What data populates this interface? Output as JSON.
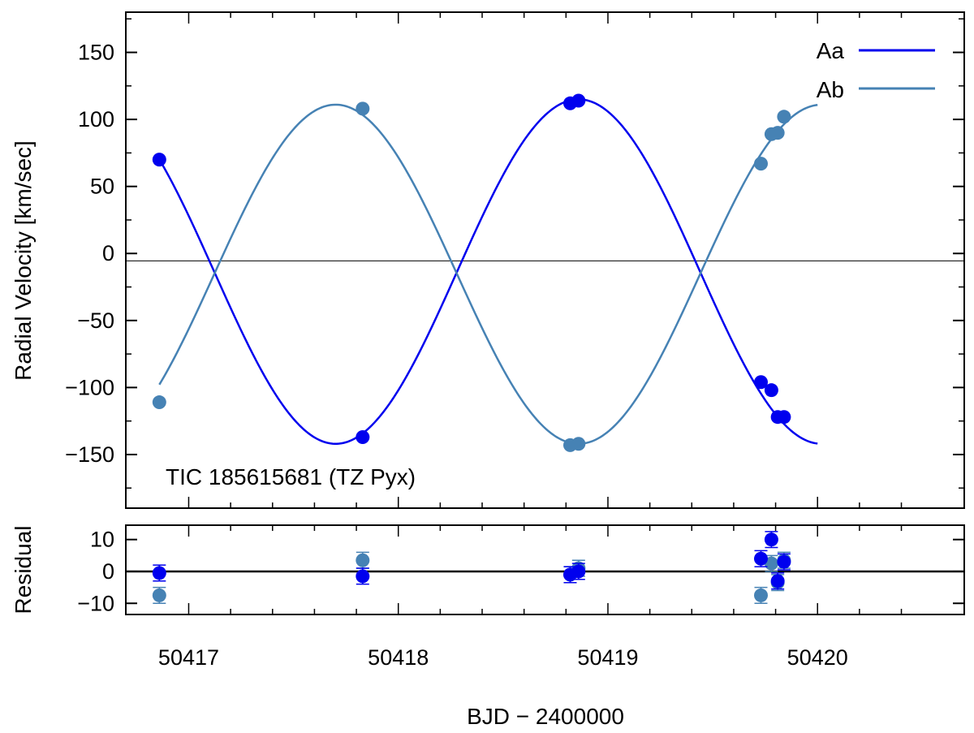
{
  "colors": {
    "Aa": "#0000ee",
    "Ab": "#4682b4",
    "axis": "#000000",
    "background": "#ffffff"
  },
  "chart_data": [
    {
      "panel": "top",
      "type": "scatter",
      "xlabel": "",
      "ylabel": "Radial Velocity [km/sec]",
      "annotation": "TIC 185615681 (TZ Pyx)",
      "xlim": [
        50416.7,
        50420.7
      ],
      "ylim": [
        -190,
        180
      ],
      "yticks": [
        150,
        100,
        50,
        0,
        -50,
        -100,
        -150
      ],
      "ytick_labels": [
        "150",
        "100",
        "50",
        "0",
        "−50",
        "−100",
        "−150"
      ],
      "systemic_velocity": -5.5,
      "legend": {
        "placement": "top-right",
        "entries": [
          "Aa",
          "Ab"
        ]
      },
      "series": [
        {
          "name": "Aa",
          "color": "#0000ee",
          "points": [
            [
              50416.86,
              70
            ],
            [
              50417.83,
              -137
            ],
            [
              50418.82,
              112
            ],
            [
              50418.86,
              114
            ],
            [
              50419.73,
              -96
            ],
            [
              50419.78,
              -102
            ],
            [
              50419.81,
              -122
            ],
            [
              50419.84,
              -122
            ]
          ],
          "model": {
            "K": 128.5,
            "gamma": -13.5,
            "phase_zero": 50418.86,
            "period": 2.318,
            "x_start": 50416.86,
            "x_end": 50420.0
          }
        },
        {
          "name": "Ab",
          "color": "#4682b4",
          "points": [
            [
              50416.86,
              -111
            ],
            [
              50417.83,
              108
            ],
            [
              50418.82,
              -143
            ],
            [
              50418.86,
              -142
            ],
            [
              50419.73,
              67
            ],
            [
              50419.78,
              89
            ],
            [
              50419.81,
              90
            ],
            [
              50419.84,
              102
            ]
          ],
          "model": {
            "K": 126.5,
            "gamma": -15.5,
            "phase_zero": 50418.86,
            "period": 2.318,
            "x_start": 50416.86,
            "x_end": 50420.0
          }
        }
      ]
    },
    {
      "panel": "bottom",
      "type": "scatter",
      "xlabel": "BJD − 2400000",
      "ylabel": "Residual",
      "xlim": [
        50416.7,
        50420.7
      ],
      "ylim": [
        -13.5,
        14.5
      ],
      "yticks": [
        10,
        0,
        -10
      ],
      "ytick_labels": [
        "10",
        "0",
        "−10"
      ],
      "xticks": [
        50417,
        50418,
        50419,
        50420
      ],
      "xtick_labels": [
        "50417",
        "50418",
        "50419",
        "50420"
      ],
      "series": [
        {
          "name": "Aa",
          "color": "#0000ee",
          "points": [
            [
              50416.86,
              -0.5
            ],
            [
              50417.83,
              -1.5
            ],
            [
              50418.82,
              -1.0
            ],
            [
              50418.86,
              0.0
            ],
            [
              50419.73,
              4.0
            ],
            [
              50419.78,
              10.0
            ],
            [
              50419.81,
              -3.0
            ],
            [
              50419.84,
              3.0
            ]
          ],
          "err": 2.5
        },
        {
          "name": "Ab",
          "color": "#4682b4",
          "points": [
            [
              50416.86,
              -7.5
            ],
            [
              50417.83,
              3.5
            ],
            [
              50418.82,
              -1.0
            ],
            [
              50418.86,
              1.0
            ],
            [
              50419.73,
              -7.5
            ],
            [
              50419.78,
              2.5
            ],
            [
              50419.81,
              -3.5
            ],
            [
              50419.84,
              3.5
            ]
          ],
          "err": 2.5
        }
      ]
    }
  ]
}
